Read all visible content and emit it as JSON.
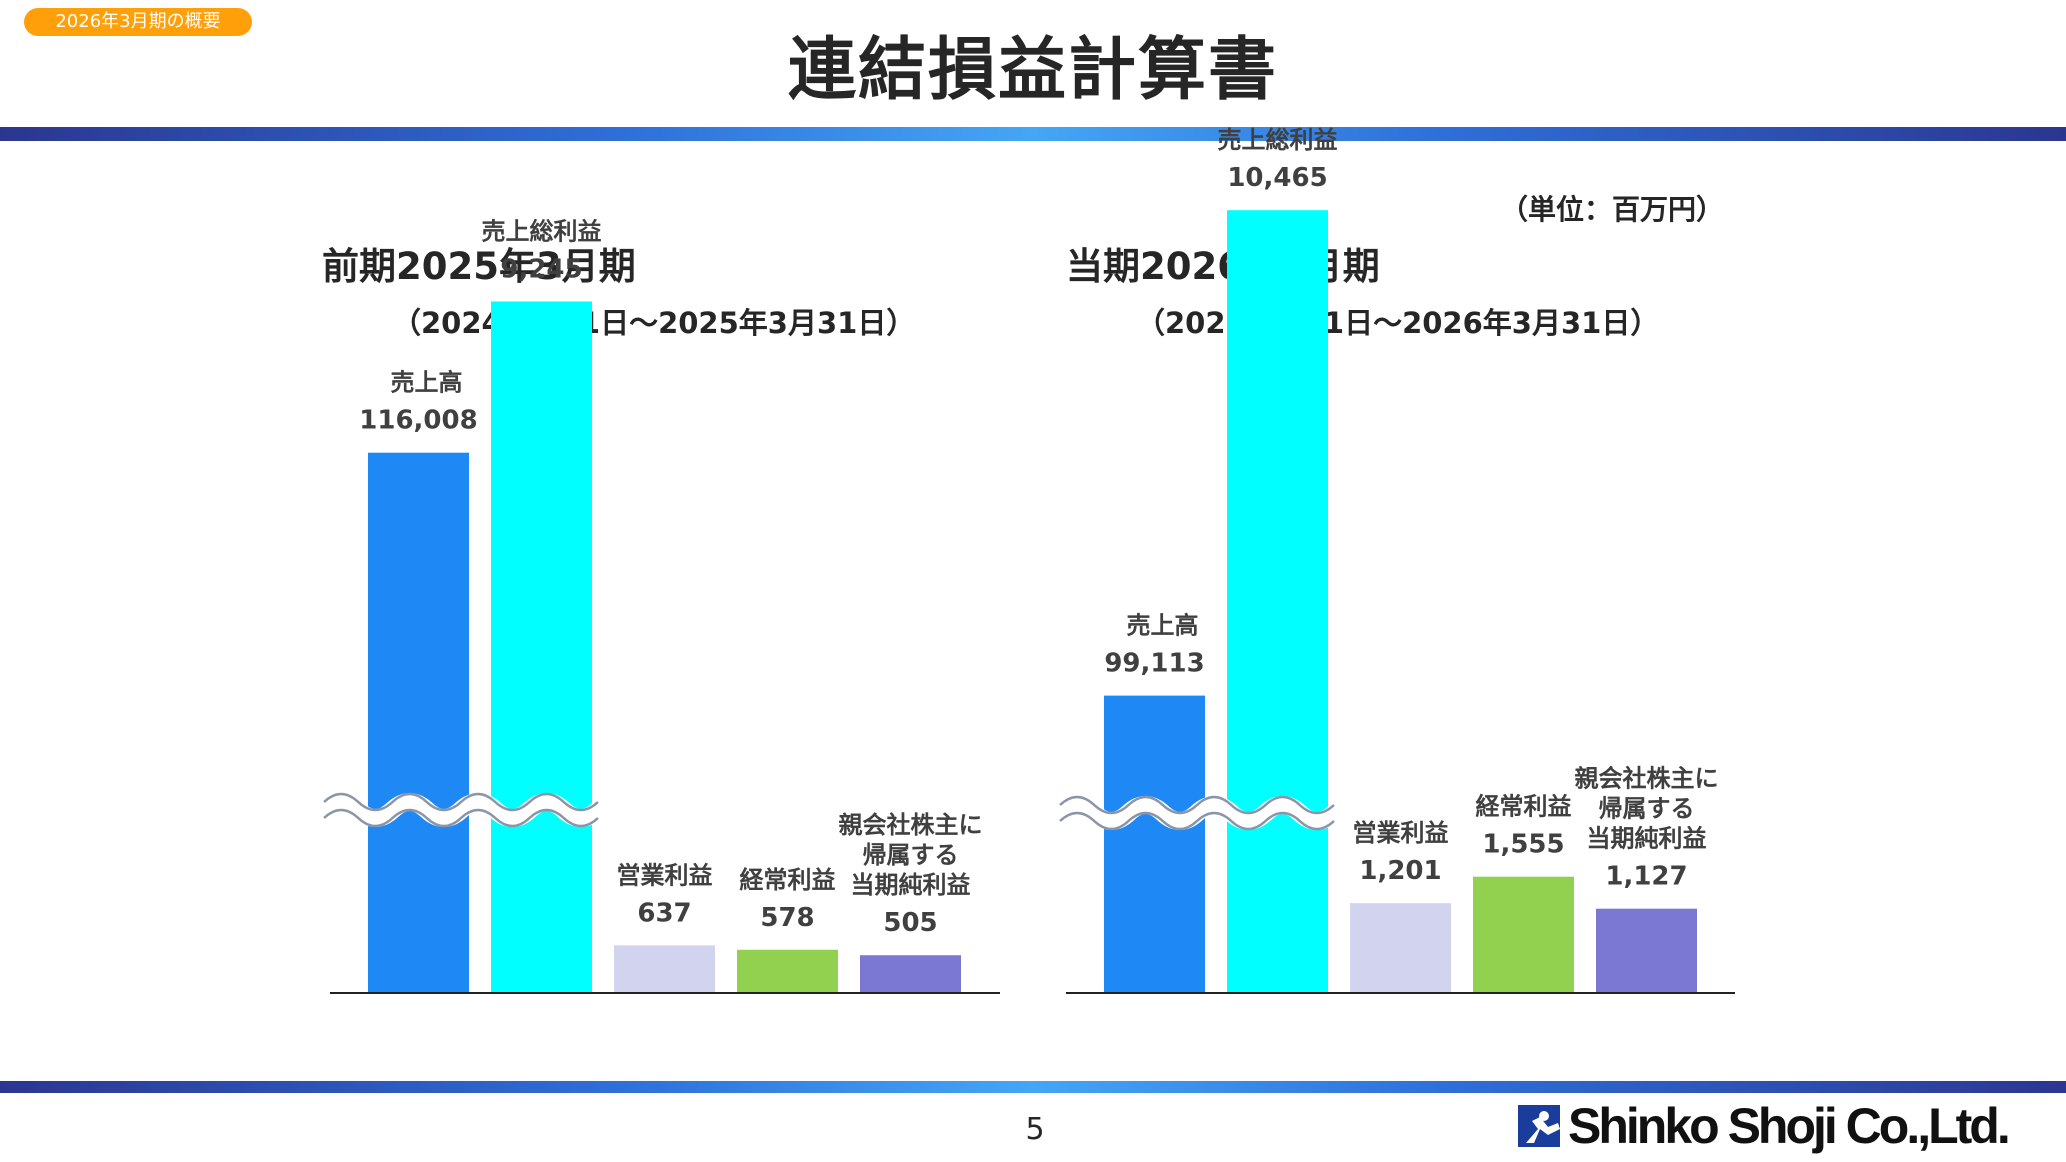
{
  "header": {
    "section_tag": "2026年3月期の概要",
    "title": "連結損益計算書"
  },
  "unit_note": "（単位：百万円）",
  "periods": [
    {
      "title": "前期2025年3月期",
      "range": "（2024年4月1日～2025年3月31日）"
    },
    {
      "title": "当期2026年3月期",
      "range": "（2025年4月1日～2026年3月31日）"
    }
  ],
  "colors": {
    "net_sales": "#1E88F5",
    "gross_profit": "#00FFFF",
    "operating_profit": "#D2D3EF",
    "ordinary_profit": "#92D050",
    "net_profit": "#7A78D2",
    "band_dark": "#2B3690",
    "band_light": "#45A6F5",
    "section_tag": "#FF9F0A"
  },
  "chart_data": [
    {
      "type": "bar",
      "title": "前期2025年3月期",
      "categories": [
        "売上高",
        "売上総利益",
        "営業利益",
        "経常利益",
        "親会社株主に帰属する当期純利益"
      ],
      "category_label_lines": [
        [
          "売上高"
        ],
        [
          "売上総利益"
        ],
        [
          "営業利益"
        ],
        [
          "経常利益"
        ],
        [
          "親会社株主に",
          "帰属する",
          "当期純利益"
        ]
      ],
      "values": [
        116008,
        9245,
        637,
        578,
        505
      ],
      "value_labels": [
        "116,008",
        "9,245",
        "637",
        "578",
        "505"
      ],
      "axis_break": true,
      "grid": false,
      "legend": "none"
    },
    {
      "type": "bar",
      "title": "当期2026年3月期",
      "categories": [
        "売上高",
        "売上総利益",
        "営業利益",
        "経常利益",
        "親会社株主に帰属する当期純利益"
      ],
      "category_label_lines": [
        [
          "売上高"
        ],
        [
          "売上総利益"
        ],
        [
          "営業利益"
        ],
        [
          "経常利益"
        ],
        [
          "親会社株主に",
          "帰属する",
          "当期純利益"
        ]
      ],
      "values": [
        99113,
        10465,
        1201,
        1555,
        1127
      ],
      "value_labels": [
        "99,113",
        "10,465",
        "1,201",
        "1,555",
        "1,127"
      ],
      "axis_break": true,
      "grid": false,
      "legend": "none"
    }
  ],
  "footer": {
    "page_number": "5",
    "company_logo": "Shinko Shoji Co.,Ltd."
  },
  "icons": {
    "logo": "shinko-logo-icon"
  }
}
